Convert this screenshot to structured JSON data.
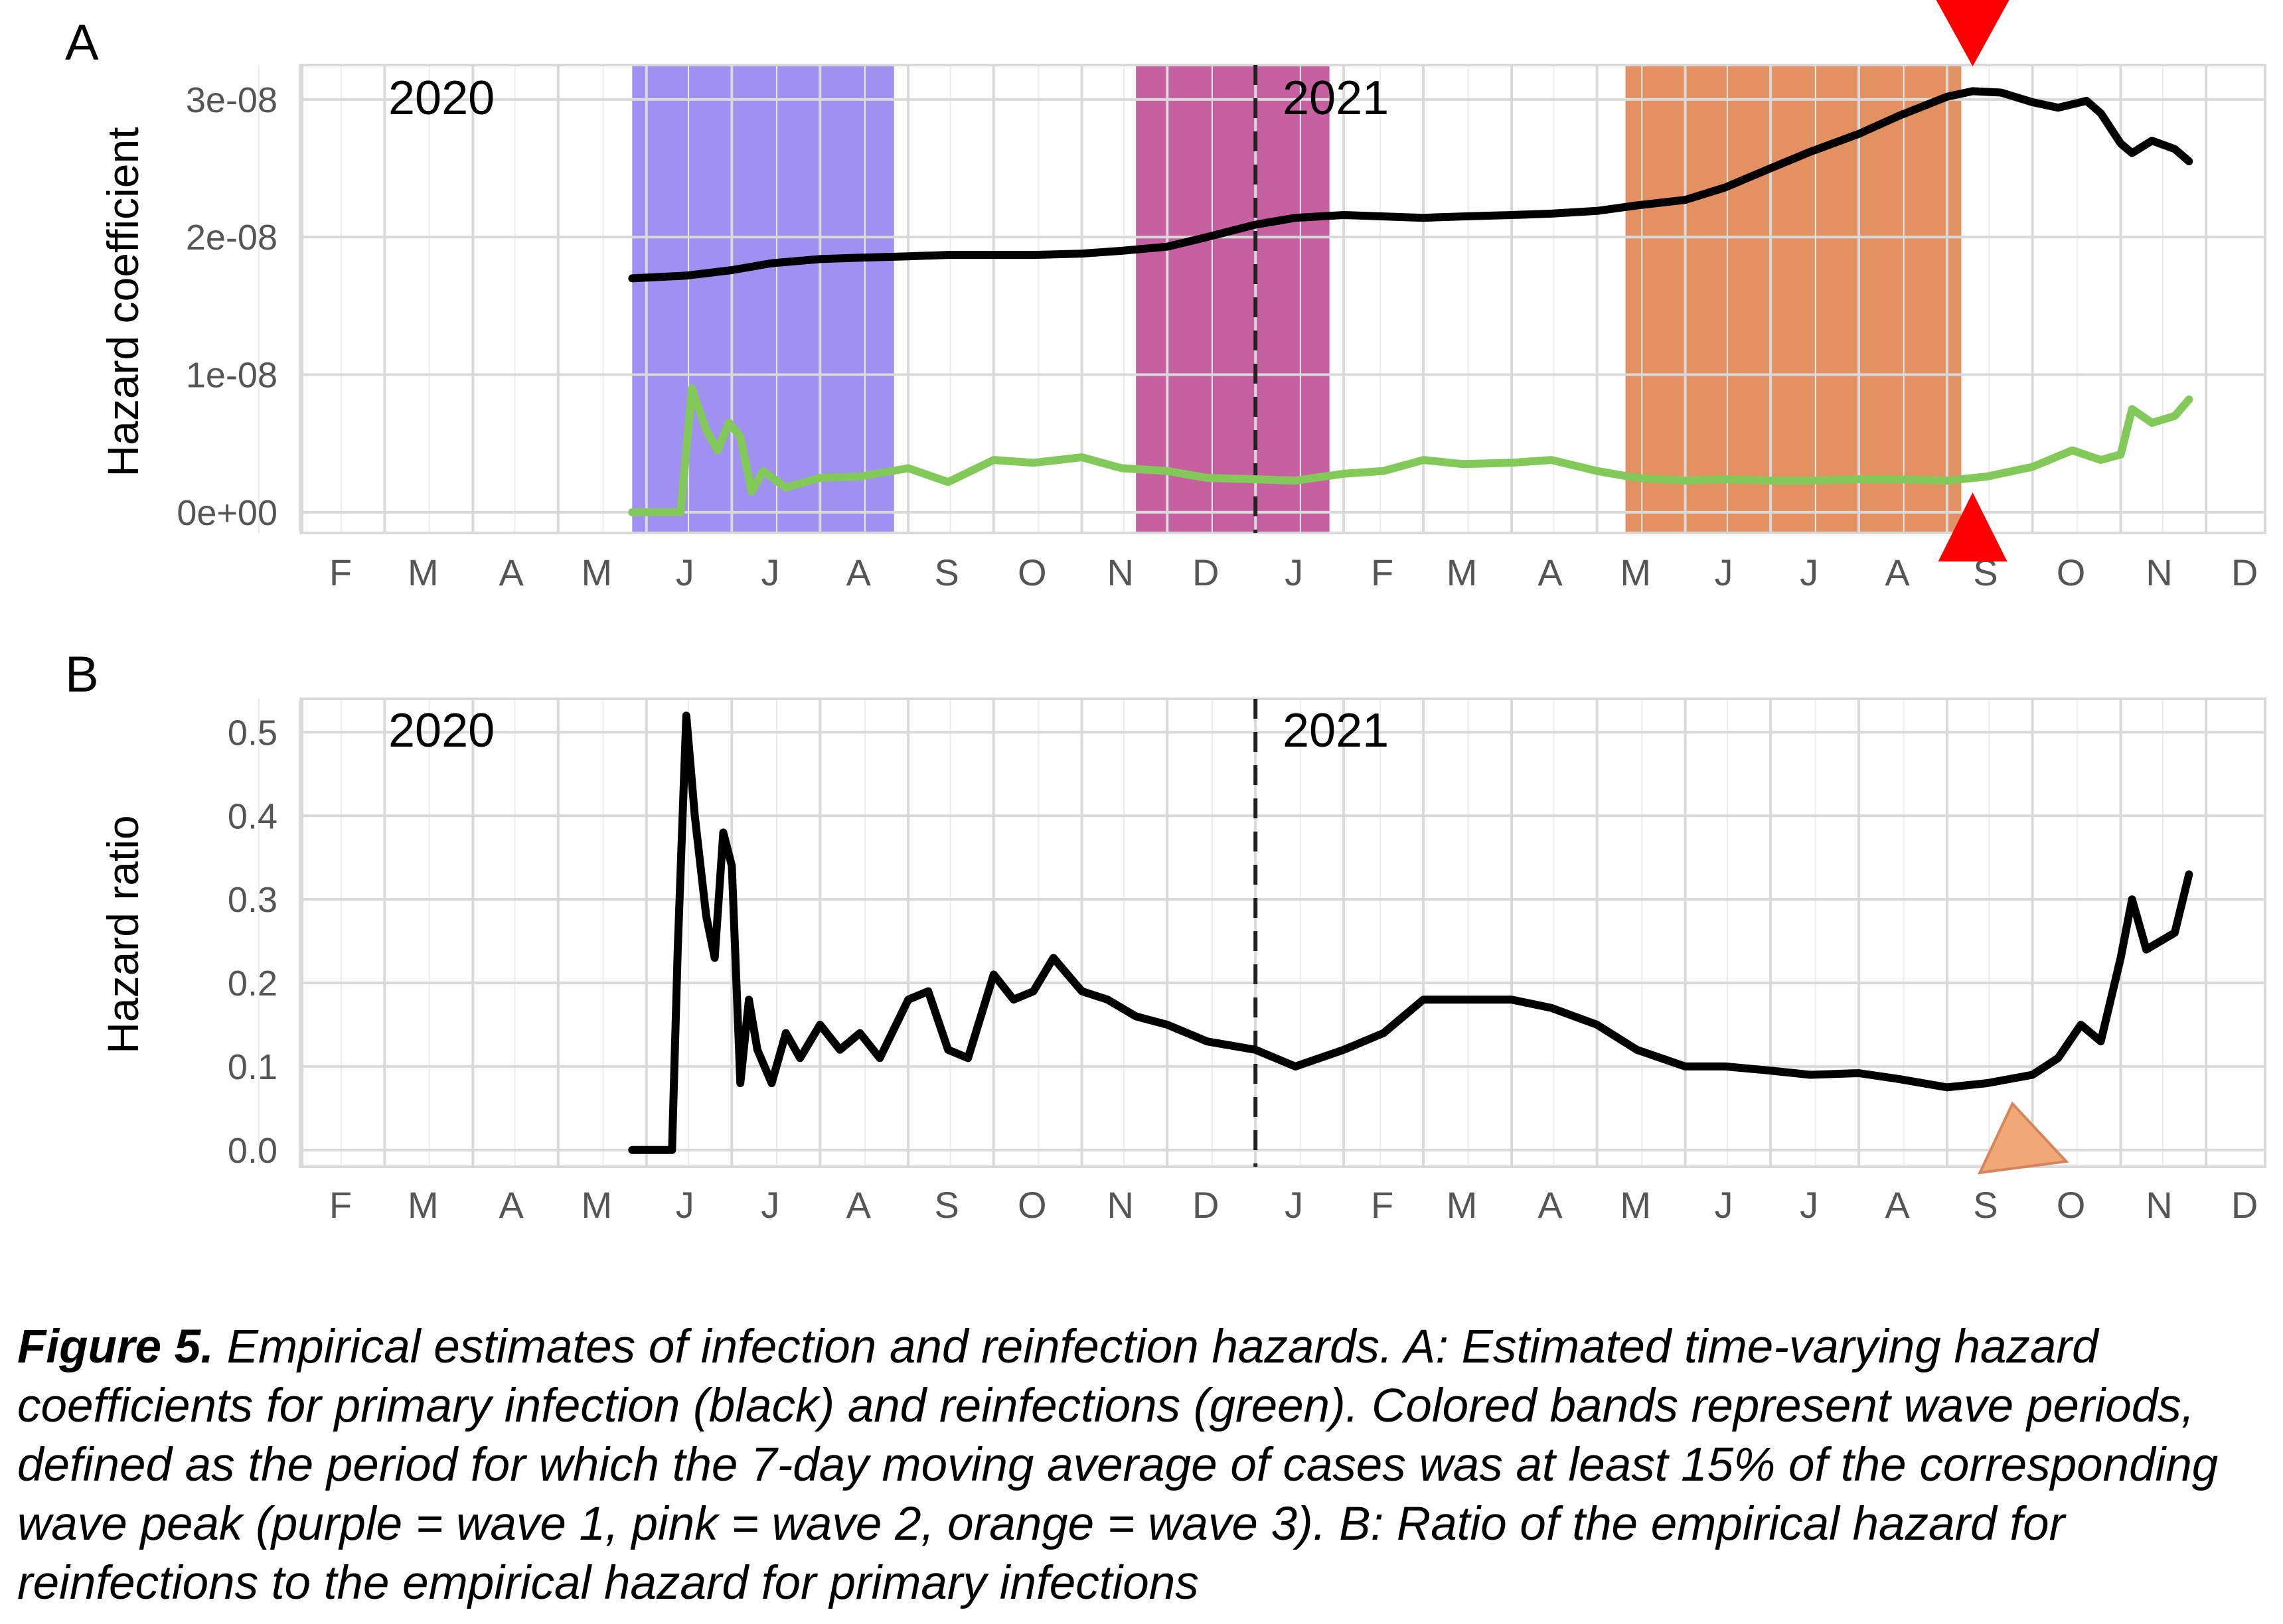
{
  "colors": {
    "primary_line": "#000000",
    "reinfection_line": "#82c95a",
    "wave1": "#9f90f2",
    "wave2": "#c760a1",
    "wave3": "#e39062",
    "marker_red": "#ff0000",
    "marker_orange": "#f0a878",
    "grid": "#dcdcdc"
  },
  "chart_data": [
    {
      "type": "line",
      "panel_label": "A",
      "ylabel": "Hazard coefficient",
      "xlabel": "",
      "x_ticks": [
        "F",
        "M",
        "A",
        "M",
        "J",
        "J",
        "A",
        "S",
        "O",
        "N",
        "D",
        "J",
        "F",
        "M",
        "A",
        "M",
        "J",
        "J",
        "A",
        "S",
        "O",
        "N",
        "D"
      ],
      "y_ticks": [
        "0e+00",
        "1e-08",
        "2e-08",
        "3e-08"
      ],
      "ylim": [
        -1.5e-09,
        3.25e-08
      ],
      "year_labels": [
        "2020",
        "2021"
      ],
      "year_boundary": "2021-01-01",
      "grid": true,
      "wave_bands": [
        {
          "name": "wave 1",
          "color": "#9f90f2",
          "start": "2020-05-27",
          "end": "2020-08-27"
        },
        {
          "name": "wave 2",
          "color": "#c760a1",
          "start": "2020-11-20",
          "end": "2021-01-27"
        },
        {
          "name": "wave 3",
          "color": "#e39062",
          "start": "2021-05-11",
          "end": "2021-09-06"
        }
      ],
      "markers": [
        {
          "shape": "triangle-down",
          "color": "#ff0000",
          "date": "2021-09-10",
          "position": "top"
        },
        {
          "shape": "triangle-up",
          "color": "#ff0000",
          "date": "2021-09-10",
          "position": "bottom"
        }
      ],
      "series": [
        {
          "color": "#000000",
          "x": [
            "2020-05-27",
            "2020-06-15",
            "2020-07-01",
            "2020-07-15",
            "2020-08-01",
            "2020-08-15",
            "2020-09-01",
            "2020-09-15",
            "2020-10-01",
            "2020-10-15",
            "2020-11-01",
            "2020-11-15",
            "2020-12-01",
            "2020-12-15",
            "2021-01-01",
            "2021-01-15",
            "2021-02-01",
            "2021-02-15",
            "2021-03-01",
            "2021-03-15",
            "2021-04-01",
            "2021-04-15",
            "2021-05-01",
            "2021-05-15",
            "2021-06-01",
            "2021-06-15",
            "2021-07-01",
            "2021-07-15",
            "2021-08-01",
            "2021-08-15",
            "2021-09-01",
            "2021-09-10",
            "2021-09-20",
            "2021-10-01",
            "2021-10-10",
            "2021-10-20",
            "2021-10-25",
            "2021-11-01",
            "2021-11-05",
            "2021-11-12",
            "2021-11-20",
            "2021-11-25"
          ],
          "values": [
            1.7e-08,
            1.72e-08,
            1.76e-08,
            1.81e-08,
            1.84e-08,
            1.85e-08,
            1.86e-08,
            1.87e-08,
            1.87e-08,
            1.87e-08,
            1.88e-08,
            1.9e-08,
            1.93e-08,
            2e-08,
            2.09e-08,
            2.14e-08,
            2.16e-08,
            2.15e-08,
            2.14e-08,
            2.15e-08,
            2.16e-08,
            2.17e-08,
            2.19e-08,
            2.23e-08,
            2.27e-08,
            2.36e-08,
            2.5e-08,
            2.62e-08,
            2.75e-08,
            2.88e-08,
            3.02e-08,
            3.06e-08,
            3.05e-08,
            2.98e-08,
            2.94e-08,
            2.99e-08,
            2.9e-08,
            2.68e-08,
            2.61e-08,
            2.7e-08,
            2.64e-08,
            2.55e-08
          ]
        },
        {
          "color": "#82c95a",
          "x": [
            "2020-05-27",
            "2020-06-10",
            "2020-06-13",
            "2020-06-17",
            "2020-06-22",
            "2020-06-26",
            "2020-06-30",
            "2020-07-04",
            "2020-07-08",
            "2020-07-12",
            "2020-07-20",
            "2020-08-01",
            "2020-08-15",
            "2020-09-01",
            "2020-09-15",
            "2020-10-01",
            "2020-10-15",
            "2020-11-01",
            "2020-11-15",
            "2020-12-01",
            "2020-12-15",
            "2021-01-01",
            "2021-01-15",
            "2021-02-01",
            "2021-02-15",
            "2021-03-01",
            "2021-03-15",
            "2021-04-01",
            "2021-04-15",
            "2021-05-01",
            "2021-05-15",
            "2021-06-01",
            "2021-06-15",
            "2021-07-01",
            "2021-07-15",
            "2021-08-01",
            "2021-08-15",
            "2021-09-01",
            "2021-09-15",
            "2021-10-01",
            "2021-10-15",
            "2021-10-25",
            "2021-11-01",
            "2021-11-05",
            "2021-11-12",
            "2021-11-20",
            "2021-11-25"
          ],
          "values": [
            0.0,
            0.0,
            0.0,
            9e-09,
            6e-09,
            4.5e-09,
            6.5e-09,
            5.5e-09,
            1.5e-09,
            3e-09,
            1.8e-09,
            2.5e-09,
            2.6e-09,
            3.2e-09,
            2.2e-09,
            3.8e-09,
            3.6e-09,
            4e-09,
            3.2e-09,
            3e-09,
            2.5e-09,
            2.4e-09,
            2.3e-09,
            2.8e-09,
            3e-09,
            3.8e-09,
            3.5e-09,
            3.6e-09,
            3.8e-09,
            3e-09,
            2.5e-09,
            2.3e-09,
            2.4e-09,
            2.3e-09,
            2.3e-09,
            2.4e-09,
            2.4e-09,
            2.3e-09,
            2.6e-09,
            3.3e-09,
            4.5e-09,
            3.8e-09,
            4.2e-09,
            7.5e-09,
            6.5e-09,
            7e-09,
            8.2e-09
          ]
        }
      ]
    },
    {
      "type": "line",
      "panel_label": "B",
      "ylabel": "Hazard ratio",
      "xlabel": "",
      "x_ticks": [
        "F",
        "M",
        "A",
        "M",
        "J",
        "J",
        "A",
        "S",
        "O",
        "N",
        "D",
        "J",
        "F",
        "M",
        "A",
        "M",
        "J",
        "J",
        "A",
        "S",
        "O",
        "N",
        "D"
      ],
      "y_ticks": [
        "0.0",
        "0.1",
        "0.2",
        "0.3",
        "0.4",
        "0.5"
      ],
      "ylim": [
        -0.02,
        0.54
      ],
      "year_labels": [
        "2020",
        "2021"
      ],
      "year_boundary": "2021-01-01",
      "grid": true,
      "markers": [
        {
          "shape": "triangle",
          "color": "#f0a878",
          "date": "2021-09-20",
          "position": "bottom"
        }
      ],
      "series": [
        {
          "color": "#000000",
          "x": [
            "2020-05-27",
            "2020-06-10",
            "2020-06-12",
            "2020-06-15",
            "2020-06-18",
            "2020-06-22",
            "2020-06-25",
            "2020-06-28",
            "2020-07-01",
            "2020-07-04",
            "2020-07-07",
            "2020-07-10",
            "2020-07-15",
            "2020-07-20",
            "2020-07-25",
            "2020-08-01",
            "2020-08-08",
            "2020-08-15",
            "2020-08-22",
            "2020-09-01",
            "2020-09-08",
            "2020-09-15",
            "2020-09-22",
            "2020-10-01",
            "2020-10-08",
            "2020-10-15",
            "2020-10-22",
            "2020-11-01",
            "2020-11-10",
            "2020-11-20",
            "2020-12-01",
            "2020-12-15",
            "2021-01-01",
            "2021-01-15",
            "2021-02-01",
            "2021-02-15",
            "2021-03-01",
            "2021-03-15",
            "2021-04-01",
            "2021-04-15",
            "2021-05-01",
            "2021-05-15",
            "2021-06-01",
            "2021-06-15",
            "2021-07-01",
            "2021-07-15",
            "2021-08-01",
            "2021-08-15",
            "2021-09-01",
            "2021-09-15",
            "2021-10-01",
            "2021-10-10",
            "2021-10-18",
            "2021-10-25",
            "2021-11-01",
            "2021-11-05",
            "2021-11-10",
            "2021-11-15",
            "2021-11-20",
            "2021-11-25"
          ],
          "values": [
            0.0,
            0.0,
            0.24,
            0.52,
            0.4,
            0.28,
            0.23,
            0.38,
            0.34,
            0.08,
            0.18,
            0.12,
            0.08,
            0.14,
            0.11,
            0.15,
            0.12,
            0.14,
            0.11,
            0.18,
            0.19,
            0.12,
            0.11,
            0.21,
            0.18,
            0.19,
            0.23,
            0.19,
            0.18,
            0.16,
            0.15,
            0.13,
            0.12,
            0.1,
            0.12,
            0.14,
            0.18,
            0.18,
            0.18,
            0.17,
            0.15,
            0.12,
            0.1,
            0.1,
            0.095,
            0.09,
            0.092,
            0.085,
            0.075,
            0.08,
            0.09,
            0.11,
            0.15,
            0.13,
            0.23,
            0.3,
            0.24,
            0.25,
            0.26,
            0.33
          ]
        }
      ]
    }
  ],
  "caption": {
    "label": "Figure 5.",
    "text": " Empirical estimates of infection and reinfection hazards. A: Estimated time-varying hazard coefficients for primary infection (black) and reinfections (green). Colored bands represent wave periods, defined as the period for which the 7-day moving average of cases was at least 15% of the corresponding wave peak (purple = wave 1, pink = wave 2, orange = wave 3). B: Ratio of the empirical hazard for reinfections to the empirical hazard for primary infections"
  }
}
